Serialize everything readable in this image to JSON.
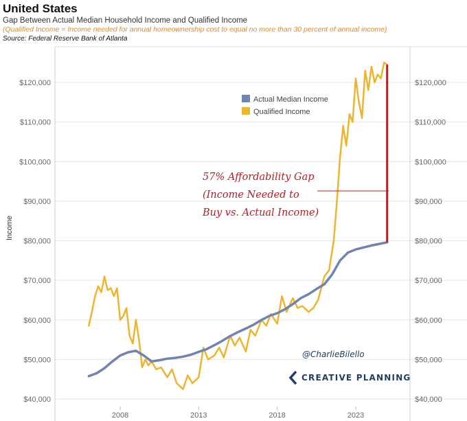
{
  "header": {
    "title": "United States",
    "subtitle": "Gap Between Actual Median Household Income and Qualified Income",
    "note": "(Qualified Income = Income needed for annual homeownership cost to equal no more than 30 percent of annual income)",
    "source": "Source: Federal Reserve Bank of Atlanta"
  },
  "annotation": {
    "line1": "57% Affordability Gap",
    "line2": "(Income Needed to",
    "line3": "Buy vs. Actual Income)"
  },
  "credits": {
    "handle": "@CharlieBilello",
    "brand": "CREATIVE PLANNING"
  },
  "colors": {
    "actual": "#6f84b0",
    "qualified": "#ebb531",
    "gap": "#b0202a",
    "brand": "#1f3f66"
  },
  "chart_data": {
    "type": "line",
    "title": "",
    "xlabel": "",
    "ylabel": "Income",
    "xlim": [
      2005.5,
      2025.5
    ],
    "ylim": [
      38000,
      126000
    ],
    "x_ticks": [
      2008,
      2013,
      2018,
      2023
    ],
    "x_tick_labels": [
      "2008",
      "2013",
      "2018",
      "2023"
    ],
    "y_ticks": [
      40000,
      50000,
      60000,
      70000,
      80000,
      90000,
      100000,
      110000,
      120000
    ],
    "y_tick_labels": [
      "$40,000",
      "$50,000",
      "$60,000",
      "$70,000",
      "$80,000",
      "$90,000",
      "$100,000",
      "$110,000",
      "$120,000"
    ],
    "grid": "horizontal",
    "legend_position": "top-right",
    "series": [
      {
        "name": "Actual Median Income",
        "x": [
          2006.0,
          2006.5,
          2007.0,
          2007.5,
          2008.0,
          2008.5,
          2009.0,
          2009.5,
          2010.0,
          2010.5,
          2011.0,
          2011.5,
          2012.0,
          2012.5,
          2013.0,
          2013.5,
          2014.0,
          2014.5,
          2015.0,
          2015.5,
          2016.0,
          2016.5,
          2017.0,
          2017.5,
          2018.0,
          2018.5,
          2019.0,
          2019.5,
          2020.0,
          2020.5,
          2021.0,
          2021.5,
          2022.0,
          2022.5,
          2023.0,
          2023.5,
          2024.0,
          2024.5,
          2025.0
        ],
        "values": [
          45800,
          46500,
          47800,
          49500,
          51000,
          51800,
          52200,
          51000,
          49500,
          49800,
          50200,
          50400,
          50700,
          51200,
          51900,
          52600,
          53600,
          54700,
          55900,
          56900,
          57800,
          58800,
          60000,
          61000,
          61700,
          62700,
          64000,
          65500,
          66500,
          67800,
          69000,
          71500,
          75000,
          77000,
          77800,
          78300,
          78800,
          79200,
          79600
        ]
      },
      {
        "name": "Qualified Income",
        "x": [
          2006.0,
          2006.2,
          2006.4,
          2006.6,
          2006.8,
          2007.0,
          2007.2,
          2007.4,
          2007.6,
          2007.8,
          2008.0,
          2008.2,
          2008.4,
          2008.6,
          2008.8,
          2009.0,
          2009.2,
          2009.4,
          2009.6,
          2009.8,
          2010.0,
          2010.3,
          2010.6,
          2011.0,
          2011.3,
          2011.6,
          2012.0,
          2012.3,
          2012.6,
          2013.0,
          2013.3,
          2013.6,
          2014.0,
          2014.3,
          2014.6,
          2015.0,
          2015.3,
          2015.6,
          2016.0,
          2016.3,
          2016.6,
          2017.0,
          2017.3,
          2017.6,
          2018.0,
          2018.3,
          2018.6,
          2019.0,
          2019.3,
          2019.6,
          2020.0,
          2020.3,
          2020.6,
          2021.0,
          2021.3,
          2021.6,
          2021.8,
          2022.0,
          2022.2,
          2022.4,
          2022.6,
          2022.8,
          2023.0,
          2023.2,
          2023.4,
          2023.6,
          2023.8,
          2024.0,
          2024.2,
          2024.4,
          2024.6,
          2024.8,
          2025.0
        ],
        "values": [
          58500,
          62000,
          66000,
          68500,
          67000,
          71000,
          67500,
          68000,
          66000,
          68000,
          60000,
          61000,
          63000,
          56000,
          54000,
          60000,
          55000,
          48000,
          50000,
          48500,
          49500,
          47500,
          48000,
          45500,
          47500,
          44000,
          42500,
          46000,
          44000,
          45500,
          53000,
          50000,
          51000,
          53000,
          50500,
          56000,
          53500,
          55500,
          52000,
          57500,
          56000,
          60000,
          58500,
          61500,
          59000,
          66000,
          62000,
          65500,
          63000,
          63500,
          62000,
          63000,
          65000,
          71000,
          72500,
          80000,
          90000,
          101000,
          109000,
          104000,
          112000,
          110000,
          121000,
          115000,
          111000,
          123000,
          118000,
          124000,
          120000,
          122000,
          121000,
          125000,
          124500
        ]
      }
    ]
  }
}
